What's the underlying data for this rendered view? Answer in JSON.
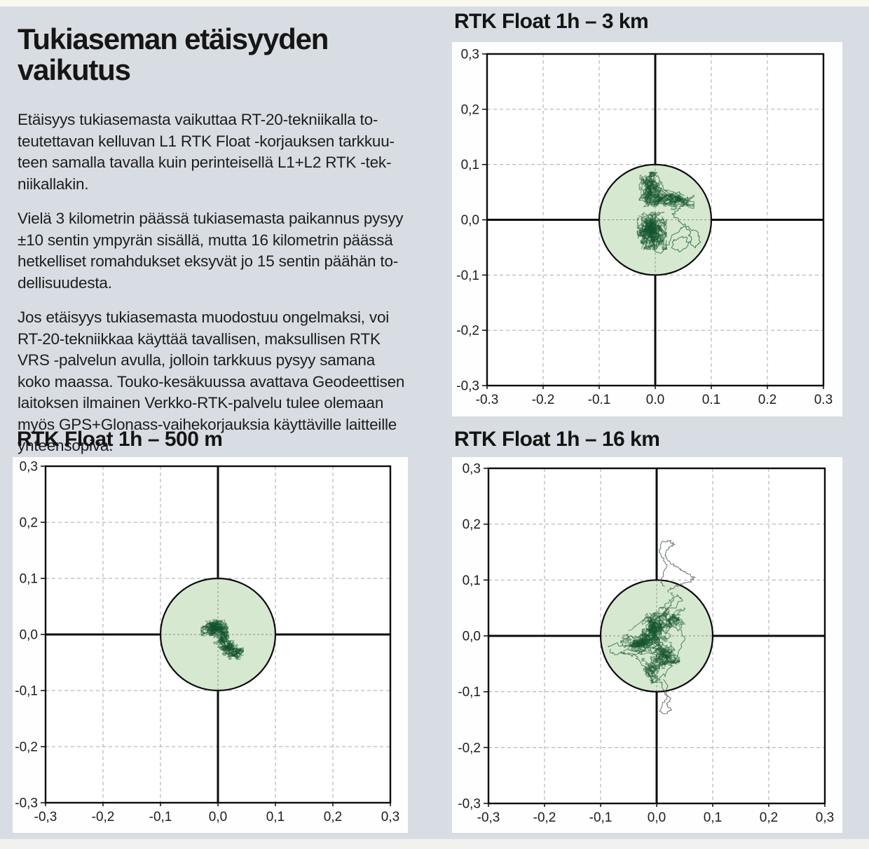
{
  "page": {
    "background_color": "#d8dde3",
    "panel_color": "#fefefe",
    "top_strip_color": "#faf9f0",
    "bottom_strip_color": "#f1f2ef"
  },
  "article": {
    "title": "Tukiaseman etäisyyden vaikutus",
    "paragraphs": [
      [
        "Etäisyys tukiasemasta vaikuttaa RT-20-tekniikalla to-",
        "teutettavan kelluvan L1 RTK Float -korjauksen tarkkuu-",
        "teen samalla tavalla kuin perinteisellä L1+L2 RTK -tek-",
        "niikallakin."
      ],
      [
        "Vielä 3 kilometrin päässä tukiasemasta paikannus pysyy",
        "±10 sentin ympyrän sisällä, mutta 16 kilometrin päässä",
        "hetkelliset romahdukset eksyvät jo 15 sentin päähän to-",
        "dellisuudesta."
      ],
      [
        "Jos etäisyys tukiasemasta muodostuu ongelmaksi, voi",
        "RT-20-tekniikkaa käyttää tavallisen, maksullisen RTK",
        "VRS -palvelun avulla, jolloin tarkkuus pysyy samana",
        "koko maassa. Touko-kesäkuussa avattava Geodeettisen",
        "laitoksen ilmainen Verkko-RTK-palvelu tulee olemaan",
        "myös GPS+Glonass-vaihekorjauksia käyttäville laitteille",
        "yhteensopiva."
      ]
    ]
  },
  "chart_data": [
    {
      "type": "scatter",
      "title": "RTK Float 1h – 3 km",
      "xlim": [
        -0.3,
        0.3
      ],
      "ylim": [
        -0.3,
        0.3
      ],
      "tick_step": 0.1,
      "grid": "dashed",
      "x_tick_labels": [
        "-0.3",
        "-0.2",
        "-0.1",
        "0.0",
        "0.1",
        "0.2",
        "0.3"
      ],
      "y_tick_labels": [
        "0,3",
        "0,2",
        "0,1",
        "0,0",
        "-0,1",
        "-0,2",
        "-0,3"
      ],
      "reference_circle": {
        "center": [
          0,
          0
        ],
        "radius": 0.1,
        "fill": "#d6e9d0",
        "stroke": "#0c0c0c",
        "meaning": "±10 cm limit"
      },
      "trace_color": "#14532d",
      "clusters": [
        {
          "cx": -0.006,
          "cy": -0.02,
          "rx": 0.02,
          "ry": 0.026,
          "strokes": 60
        },
        {
          "cx": -0.008,
          "cy": 0.055,
          "rx": 0.016,
          "ry": 0.024,
          "strokes": 34
        },
        {
          "cx": 0.012,
          "cy": 0.038,
          "rx": 0.016,
          "ry": 0.012,
          "strokes": 16
        },
        {
          "cx": 0.038,
          "cy": 0.034,
          "rx": 0.024,
          "ry": 0.012,
          "strokes": 22
        }
      ],
      "paths": [
        {
          "width": 1,
          "opacity": 0.75,
          "wiggle": 0.005,
          "points": [
            [
              -0.01,
              0.082
            ],
            [
              0.0,
              0.07
            ],
            [
              0.01,
              0.055
            ],
            [
              0.02,
              0.045
            ],
            [
              0.03,
              0.04
            ],
            [
              0.045,
              0.042
            ],
            [
              0.06,
              0.035
            ],
            [
              0.05,
              0.025
            ],
            [
              0.04,
              0.018
            ],
            [
              0.03,
              0.01
            ],
            [
              0.04,
              0.0
            ],
            [
              0.05,
              -0.008
            ],
            [
              0.06,
              -0.02
            ],
            [
              0.065,
              -0.035
            ],
            [
              0.055,
              -0.05
            ],
            [
              0.04,
              -0.058
            ],
            [
              0.03,
              -0.05
            ],
            [
              0.035,
              -0.035
            ],
            [
              0.05,
              -0.03
            ],
            [
              0.06,
              -0.04
            ],
            [
              0.07,
              -0.05
            ],
            [
              0.08,
              -0.04
            ],
            [
              0.075,
              -0.025
            ],
            [
              0.06,
              -0.01
            ],
            [
              0.045,
              -0.015
            ],
            [
              0.03,
              -0.03
            ],
            [
              0.02,
              -0.05
            ],
            [
              0.01,
              -0.06
            ],
            [
              -0.005,
              -0.05
            ]
          ]
        },
        {
          "width": 1,
          "opacity": 0.7,
          "wiggle": 0.004,
          "points": [
            [
              -0.02,
              0.06
            ],
            [
              -0.015,
              0.075
            ],
            [
              -0.005,
              0.085
            ],
            [
              0.005,
              0.078
            ],
            [
              0.012,
              0.065
            ],
            [
              0.02,
              0.05
            ],
            [
              0.03,
              0.045
            ],
            [
              0.04,
              0.05
            ],
            [
              0.05,
              0.045
            ]
          ]
        }
      ]
    },
    {
      "type": "scatter",
      "title": "RTK Float 1h – 500 m",
      "xlim": [
        -0.3,
        0.3
      ],
      "ylim": [
        -0.3,
        0.3
      ],
      "tick_step": 0.1,
      "grid": "dashed",
      "x_tick_labels": [
        "-0,3",
        "-0,2",
        "-0,1",
        "0,0",
        "0,1",
        "0,2",
        "0,3"
      ],
      "y_tick_labels": [
        "0,3",
        "0,2",
        "0,1",
        "0,0",
        "-0,1",
        "-0,2",
        "-0,3"
      ],
      "reference_circle": {
        "center": [
          0,
          0
        ],
        "radius": 0.1,
        "fill": "#d6e9d0",
        "stroke": "#0c0c0c",
        "meaning": "±10 cm limit"
      },
      "trace_color": "#14532d",
      "clusters": [
        {
          "cx": -0.006,
          "cy": 0.012,
          "rx": 0.018,
          "ry": 0.011,
          "strokes": 55
        },
        {
          "cx": 0.006,
          "cy": -0.008,
          "rx": 0.01,
          "ry": 0.012,
          "strokes": 22
        },
        {
          "cx": 0.018,
          "cy": -0.024,
          "rx": 0.012,
          "ry": 0.01,
          "strokes": 28
        },
        {
          "cx": 0.03,
          "cy": -0.034,
          "rx": 0.011,
          "ry": 0.008,
          "strokes": 22
        }
      ],
      "paths": [
        {
          "width": 1,
          "opacity": 0.7,
          "wiggle": 0.004,
          "points": [
            [
              -0.025,
              0.012
            ],
            [
              -0.015,
              0.02
            ],
            [
              -0.005,
              0.022
            ],
            [
              0.005,
              0.016
            ],
            [
              0.01,
              0.006
            ],
            [
              0.012,
              -0.006
            ],
            [
              0.018,
              -0.016
            ],
            [
              0.026,
              -0.026
            ],
            [
              0.035,
              -0.032
            ],
            [
              0.04,
              -0.038
            ],
            [
              0.032,
              -0.042
            ],
            [
              0.022,
              -0.035
            ],
            [
              0.015,
              -0.025
            ],
            [
              0.008,
              -0.012
            ],
            [
              0.0,
              0.0
            ],
            [
              -0.01,
              0.01
            ]
          ]
        }
      ]
    },
    {
      "type": "scatter",
      "title": "RTK Float 1h – 16 km",
      "xlim": [
        -0.3,
        0.3
      ],
      "ylim": [
        -0.3,
        0.3
      ],
      "tick_step": 0.1,
      "grid": "dashed",
      "x_tick_labels": [
        "-0,3",
        "-0,2",
        "-0,1",
        "0,0",
        "0,1",
        "0,2",
        "0,3"
      ],
      "y_tick_labels": [
        "0,3",
        "0,2",
        "0,1",
        "0,0",
        "-0,1",
        "-0,2",
        "-0,3"
      ],
      "reference_circle": {
        "center": [
          0,
          0
        ],
        "radius": 0.1,
        "fill": "#d6e9d0",
        "stroke": "#0c0c0c",
        "meaning": "±10 cm limit"
      },
      "trace_color": "#14532d",
      "clusters": [
        {
          "cx": 0.0,
          "cy": 0.012,
          "rx": 0.02,
          "ry": 0.022,
          "strokes": 40
        },
        {
          "cx": -0.028,
          "cy": -0.015,
          "rx": 0.028,
          "ry": 0.014,
          "strokes": 30
        },
        {
          "cx": 0.015,
          "cy": -0.035,
          "rx": 0.02,
          "ry": 0.018,
          "strokes": 30
        },
        {
          "cx": -0.008,
          "cy": -0.06,
          "rx": 0.014,
          "ry": 0.018,
          "strokes": 16
        },
        {
          "cx": 0.028,
          "cy": 0.028,
          "rx": 0.018,
          "ry": 0.018,
          "strokes": 12
        }
      ],
      "paths": [
        {
          "width": 1,
          "opacity": 0.7,
          "wiggle": 0.006,
          "points": [
            [
              -0.085,
              -0.02
            ],
            [
              -0.07,
              -0.012
            ],
            [
              -0.055,
              -0.02
            ],
            [
              -0.04,
              -0.01
            ],
            [
              -0.025,
              0.0
            ],
            [
              -0.01,
              0.015
            ],
            [
              0.005,
              0.03
            ],
            [
              0.02,
              0.045
            ],
            [
              0.035,
              0.055
            ],
            [
              0.045,
              0.065
            ],
            [
              0.035,
              0.072
            ],
            [
              0.025,
              0.06
            ],
            [
              0.015,
              0.04
            ],
            [
              0.025,
              0.02
            ],
            [
              0.04,
              0.01
            ],
            [
              0.05,
              -0.005
            ],
            [
              0.04,
              -0.025
            ],
            [
              0.03,
              -0.045
            ],
            [
              0.02,
              -0.06
            ],
            [
              0.01,
              -0.075
            ],
            [
              -0.005,
              -0.085
            ],
            [
              -0.015,
              -0.07
            ],
            [
              -0.025,
              -0.05
            ],
            [
              -0.04,
              -0.035
            ],
            [
              -0.06,
              -0.03
            ],
            [
              -0.075,
              -0.035
            ],
            [
              -0.085,
              -0.025
            ]
          ]
        },
        {
          "width": 1,
          "opacity": 0.6,
          "wiggle": 0.005,
          "points": [
            [
              -0.05,
              0.01
            ],
            [
              -0.035,
              0.02
            ],
            [
              -0.02,
              0.03
            ],
            [
              -0.005,
              0.04
            ],
            [
              0.01,
              0.05
            ],
            [
              0.02,
              0.06
            ],
            [
              0.03,
              0.07
            ],
            [
              0.025,
              0.078
            ]
          ]
        },
        {
          "width": 1,
          "opacity": 0.85,
          "wiggle": 0.004,
          "color": "#4d5a52",
          "points": [
            [
              0.02,
              0.078
            ],
            [
              0.03,
              0.088
            ],
            [
              0.045,
              0.092
            ],
            [
              0.06,
              0.098
            ],
            [
              0.068,
              0.103
            ],
            [
              0.055,
              0.112
            ],
            [
              0.042,
              0.118
            ],
            [
              0.032,
              0.125
            ],
            [
              0.022,
              0.133
            ],
            [
              0.016,
              0.145
            ],
            [
              0.022,
              0.158
            ],
            [
              0.032,
              0.163
            ],
            [
              0.026,
              0.17
            ],
            [
              0.012,
              0.168
            ],
            [
              0.004,
              0.155
            ],
            [
              0.01,
              0.14
            ],
            [
              0.018,
              0.128
            ],
            [
              0.012,
              0.112
            ],
            [
              0.008,
              0.098
            ],
            [
              0.014,
              0.086
            ]
          ]
        },
        {
          "width": 1,
          "opacity": 0.85,
          "wiggle": 0.003,
          "color": "#4d5a52",
          "points": [
            [
              0.012,
              -0.078
            ],
            [
              0.02,
              -0.09
            ],
            [
              0.014,
              -0.103
            ],
            [
              0.024,
              -0.112
            ],
            [
              0.018,
              -0.124
            ],
            [
              0.026,
              -0.132
            ],
            [
              0.016,
              -0.14
            ],
            [
              0.006,
              -0.134
            ],
            [
              0.012,
              -0.12
            ],
            [
              0.02,
              -0.108
            ],
            [
              0.012,
              -0.095
            ],
            [
              0.008,
              -0.082
            ]
          ]
        }
      ]
    }
  ]
}
